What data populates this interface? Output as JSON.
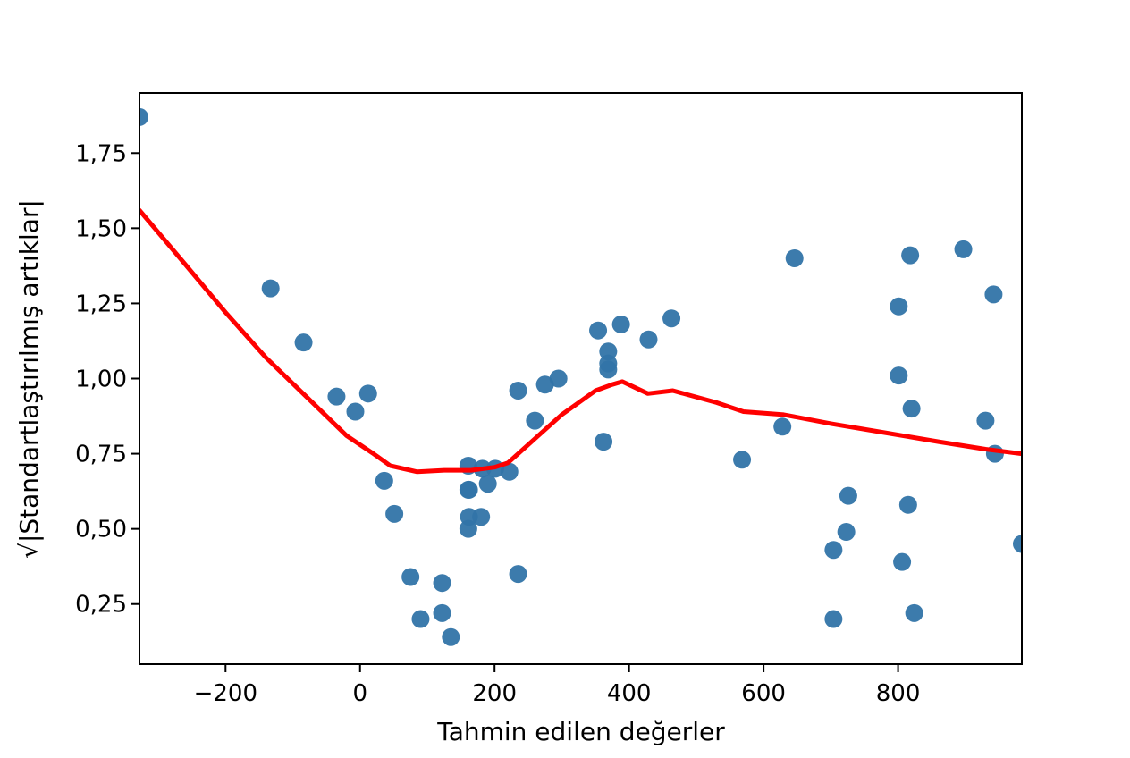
{
  "chart_data": {
    "type": "scatter",
    "title": "",
    "xlabel": "Tahmin edilen değerler",
    "ylabel": "√|Standartlaştırılmış artıklar|",
    "ylabel_sqrt_symbol": "√",
    "ylabel_text": "|Standartlaştırılmış artıklar|",
    "xlim": [
      -328,
      984
    ],
    "ylim": [
      0.05,
      1.95
    ],
    "xticks": [
      -200,
      0,
      200,
      400,
      600,
      800
    ],
    "xtick_labels": [
      "−200",
      "0",
      "200",
      "400",
      "600",
      "800"
    ],
    "yticks": [
      0.25,
      0.5,
      0.75,
      1.0,
      1.25,
      1.5,
      1.75
    ],
    "ytick_labels": [
      "0,25",
      "0,50",
      "0,75",
      "1,00",
      "1,25",
      "1,50",
      "1,75"
    ],
    "grid": false,
    "legend": null,
    "series": [
      {
        "name": "points",
        "kind": "scatter",
        "color": "#3274a8",
        "points": [
          [
            -328,
            1.87
          ],
          [
            -133,
            1.3
          ],
          [
            -84,
            1.12
          ],
          [
            -35,
            0.94
          ],
          [
            -7,
            0.89
          ],
          [
            12,
            0.95
          ],
          [
            36,
            0.66
          ],
          [
            51,
            0.55
          ],
          [
            75,
            0.34
          ],
          [
            90,
            0.2
          ],
          [
            122,
            0.32
          ],
          [
            122,
            0.22
          ],
          [
            135,
            0.14
          ],
          [
            161,
            0.71
          ],
          [
            161,
            0.63
          ],
          [
            162,
            0.63
          ],
          [
            162,
            0.54
          ],
          [
            161,
            0.5
          ],
          [
            180,
            0.54
          ],
          [
            182,
            0.7
          ],
          [
            190,
            0.65
          ],
          [
            201,
            0.7
          ],
          [
            222,
            0.69
          ],
          [
            235,
            0.96
          ],
          [
            235,
            0.35
          ],
          [
            260,
            0.86
          ],
          [
            275,
            0.98
          ],
          [
            295,
            1.0
          ],
          [
            354,
            1.16
          ],
          [
            362,
            0.79
          ],
          [
            369,
            1.09
          ],
          [
            369,
            1.05
          ],
          [
            369,
            1.03
          ],
          [
            388,
            1.18
          ],
          [
            429,
            1.13
          ],
          [
            463,
            1.2
          ],
          [
            568,
            0.73
          ],
          [
            628,
            0.84
          ],
          [
            646,
            1.4
          ],
          [
            704,
            0.43
          ],
          [
            704,
            0.2
          ],
          [
            723,
            0.49
          ],
          [
            726,
            0.61
          ],
          [
            801,
            1.24
          ],
          [
            801,
            1.01
          ],
          [
            806,
            0.39
          ],
          [
            815,
            0.58
          ],
          [
            818,
            1.41
          ],
          [
            820,
            0.9
          ],
          [
            824,
            0.22
          ],
          [
            897,
            1.43
          ],
          [
            930,
            0.86
          ],
          [
            942,
            1.28
          ],
          [
            944,
            0.75
          ],
          [
            984,
            0.45
          ]
        ]
      },
      {
        "name": "lowess",
        "kind": "line",
        "color": "#ff0000",
        "points": [
          [
            -328,
            1.56
          ],
          [
            -260,
            1.38
          ],
          [
            -200,
            1.22
          ],
          [
            -140,
            1.07
          ],
          [
            -80,
            0.94
          ],
          [
            -20,
            0.81
          ],
          [
            20,
            0.75
          ],
          [
            45,
            0.71
          ],
          [
            85,
            0.69
          ],
          [
            125,
            0.695
          ],
          [
            165,
            0.695
          ],
          [
            200,
            0.705
          ],
          [
            220,
            0.72
          ],
          [
            260,
            0.8
          ],
          [
            300,
            0.88
          ],
          [
            350,
            0.96
          ],
          [
            375,
            0.98
          ],
          [
            390,
            0.99
          ],
          [
            428,
            0.95
          ],
          [
            465,
            0.96
          ],
          [
            530,
            0.92
          ],
          [
            570,
            0.89
          ],
          [
            630,
            0.88
          ],
          [
            700,
            0.85
          ],
          [
            780,
            0.82
          ],
          [
            860,
            0.79
          ],
          [
            930,
            0.765
          ],
          [
            984,
            0.75
          ]
        ]
      }
    ]
  }
}
